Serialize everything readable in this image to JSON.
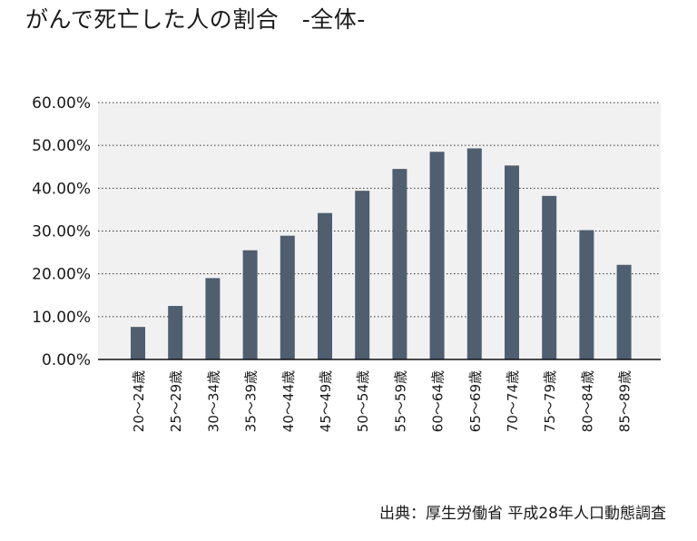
{
  "title": "がんで死亡した人の割合　-全体-",
  "source": "出典：厚生労働省 平成28年人口動態調査",
  "colors": {
    "bar": "#4f5f70",
    "plot_bg": "#f1f1f1",
    "grid": "#333333"
  },
  "chart_data": {
    "type": "bar",
    "title": "がんで死亡した人の割合　-全体-",
    "xlabel": "",
    "ylabel": "",
    "ylim": [
      0,
      60
    ],
    "yticks": [
      "0.00%",
      "10.00%",
      "20.00%",
      "30.00%",
      "40.00%",
      "50.00%",
      "60.00%"
    ],
    "grid": "horizontal dotted",
    "legend": "none",
    "categories": [
      "20～24歳",
      "25～29歳",
      "30～34歳",
      "35～39歳",
      "40～44歳",
      "45～49歳",
      "50～54歳",
      "55～59歳",
      "60～64歳",
      "65～69歳",
      "70～74歳",
      "75～79歳",
      "80～84歳",
      "85～89歳"
    ],
    "values": [
      7.6,
      12.5,
      19.0,
      25.5,
      28.9,
      34.2,
      39.4,
      44.5,
      48.5,
      49.3,
      45.3,
      38.2,
      30.2,
      22.1
    ]
  }
}
